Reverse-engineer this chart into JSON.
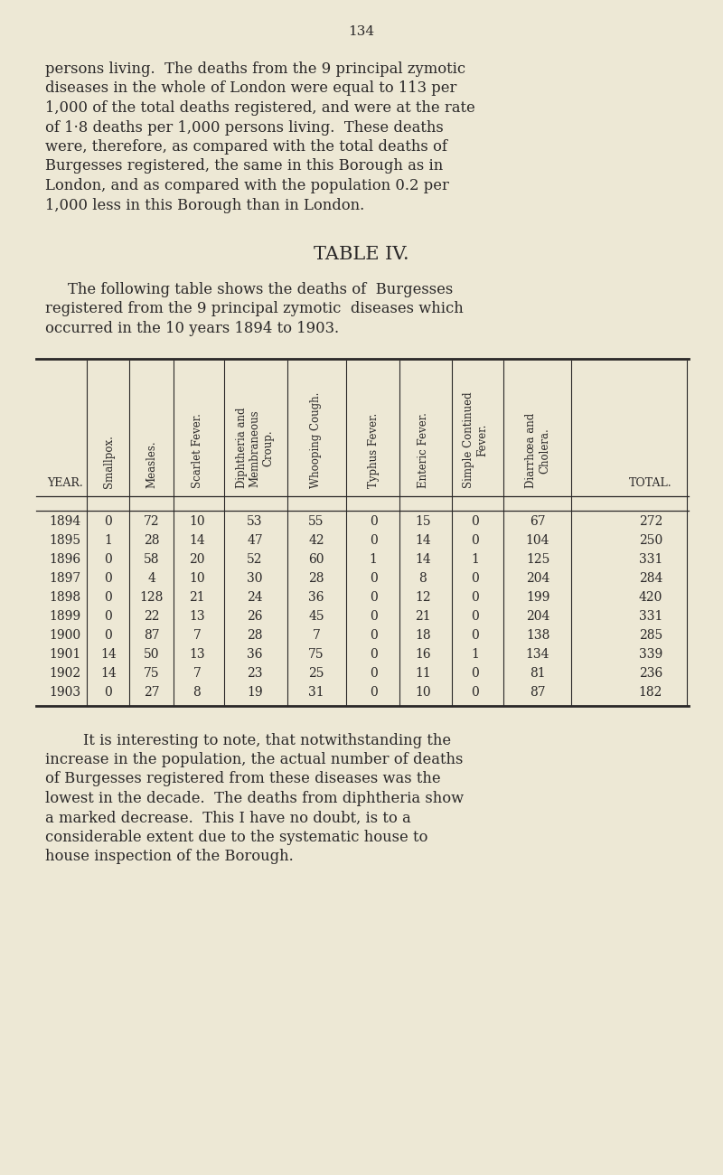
{
  "page_number": "134",
  "bg_color": "#ede8d5",
  "text_color": "#2a2828",
  "intro_lines": [
    "persons living.  The deaths from the 9 principal zymotic",
    "diseases in the whole of London were equal to 113 per",
    "1,000 of the total deaths registered, and were at the rate",
    "of 1·8 deaths per 1,000 persons living.  These deaths",
    "were, therefore, as compared with the total deaths of",
    "Burgesses registered, the same in this Borough as in",
    "London, and as compared with the population 0.2 per",
    "1,000 less in this Borough than in London."
  ],
  "table_title": "TABLE IV.",
  "table_intro_lines": [
    "The following table shows the deaths of  Burgesses",
    "registered from the 9 principal zymotic  diseases which",
    "occurred in the 10 years 1894 to 1903."
  ],
  "col_headers_rotated": [
    "Smallpox.",
    "Measles.",
    "Scarlet Fever.",
    "Diphtheria and\nMembraneous\nCroup.",
    "Whooping Cough.",
    "Typhus Fever.",
    "Enteric Fever.",
    "Simple Continued\nFever.",
    "Diarrhœa and\nCholera."
  ],
  "years": [
    1894,
    1895,
    1896,
    1897,
    1898,
    1899,
    1900,
    1901,
    1902,
    1903
  ],
  "data": [
    [
      0,
      72,
      10,
      53,
      55,
      0,
      15,
      0,
      67,
      272
    ],
    [
      1,
      28,
      14,
      47,
      42,
      0,
      14,
      0,
      104,
      250
    ],
    [
      0,
      58,
      20,
      52,
      60,
      1,
      14,
      1,
      125,
      331
    ],
    [
      0,
      4,
      10,
      30,
      28,
      0,
      8,
      0,
      204,
      284
    ],
    [
      0,
      128,
      21,
      24,
      36,
      0,
      12,
      0,
      199,
      420
    ],
    [
      0,
      22,
      13,
      26,
      45,
      0,
      21,
      0,
      204,
      331
    ],
    [
      0,
      87,
      7,
      28,
      7,
      0,
      18,
      0,
      138,
      285
    ],
    [
      14,
      50,
      13,
      36,
      75,
      0,
      16,
      1,
      134,
      339
    ],
    [
      14,
      75,
      7,
      23,
      25,
      0,
      11,
      0,
      81,
      236
    ],
    [
      0,
      27,
      8,
      19,
      31,
      0,
      10,
      0,
      87,
      182
    ]
  ],
  "footer_lines": [
    "        It is interesting to note, that notwithstanding the",
    "increase in the population, the actual number of deaths",
    "of Burgesses registered from these diseases was the",
    "lowest in the decade.  The deaths from diphtheria show",
    "a marked decrease.  This I have no doubt, is to a",
    "considerable extent due to the systematic house to",
    "house inspection of the Borough."
  ]
}
